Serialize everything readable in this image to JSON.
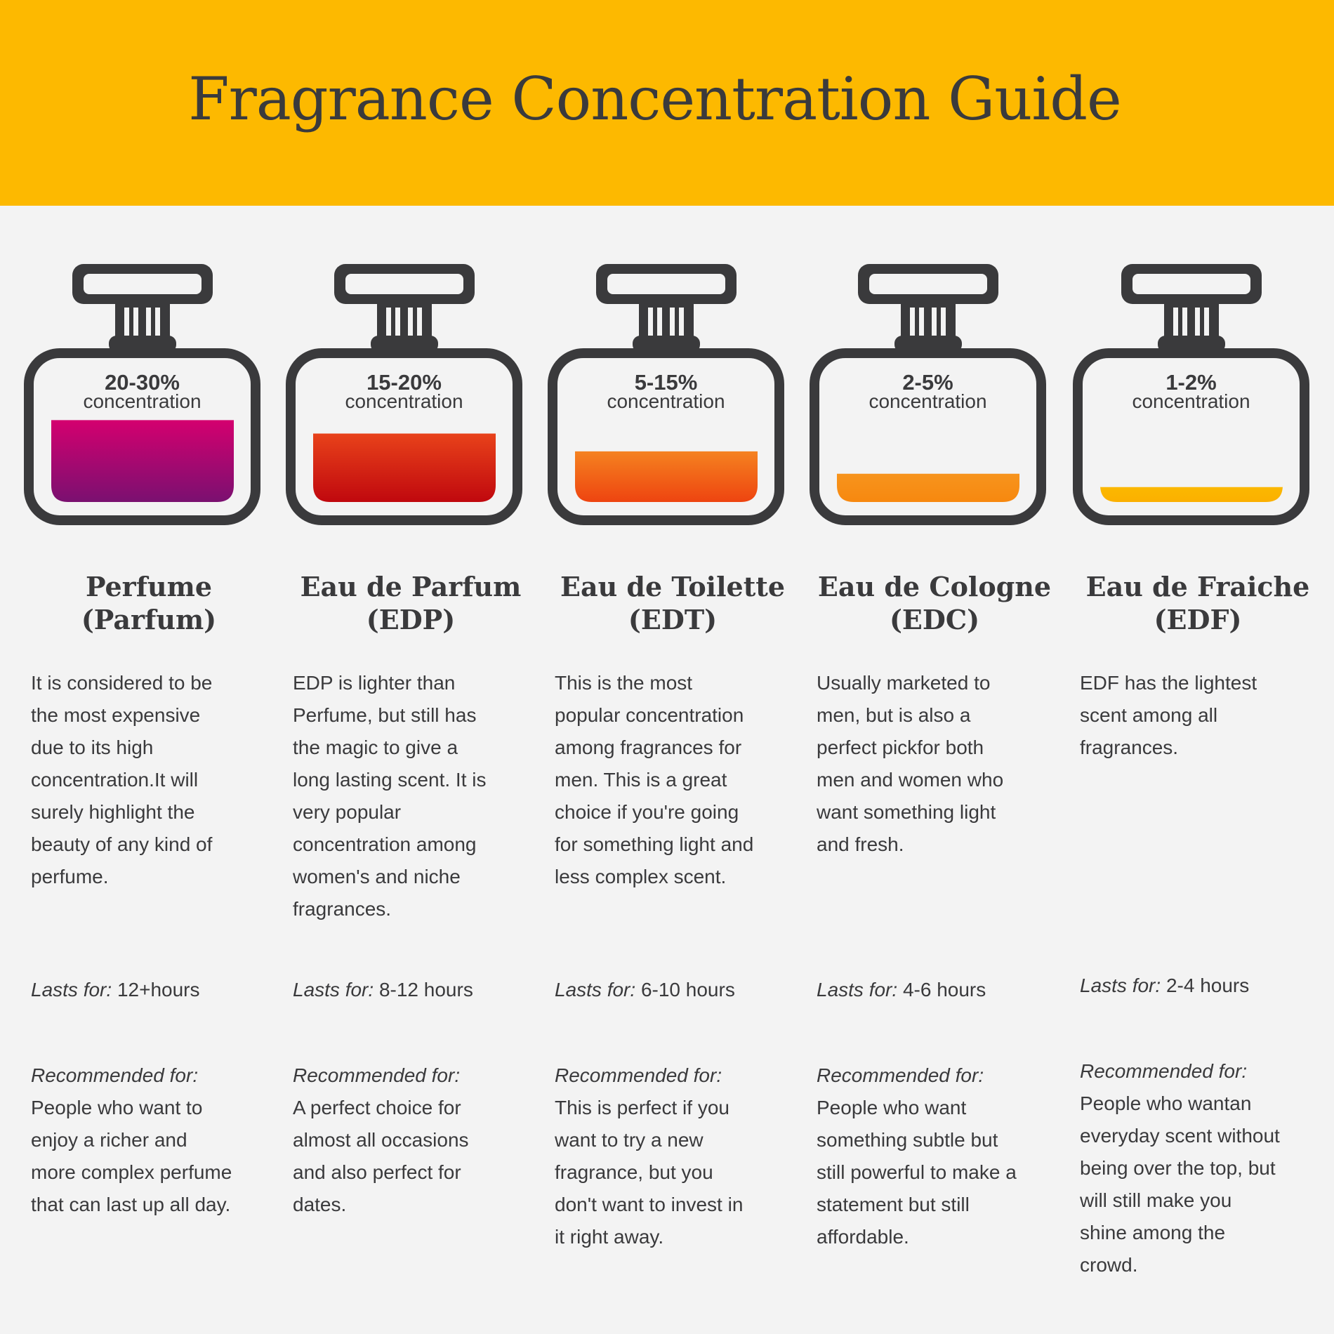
{
  "header": {
    "title": "Fragrance Concentration Guide",
    "background": "#fdb900"
  },
  "colors": {
    "bottle": "#3a3a3c",
    "text": "#3a3a3c",
    "page": "#f3f3f3"
  },
  "concentration_label": "concentration",
  "lasts_label": "Lasts for:",
  "recommended_label": "Recommended for:",
  "types": [
    {
      "percent": "20-30%",
      "name_line1": "Perfume",
      "name_line2": "(Parfum)",
      "fill_level": 0.55,
      "fill_colors": [
        "#d4006f",
        "#7a1070"
      ],
      "description": [
        "It is considered to be",
        "the most expensive",
        "due to its high",
        "concentration.It will",
        "surely highlight the",
        "beauty of any kind of",
        "perfume."
      ],
      "lasts": "12+hours",
      "recommended": [
        "People who want to",
        "enjoy a richer and",
        "more complex perfume",
        "that can last up all day."
      ]
    },
    {
      "percent": "15-20%",
      "name_line1": "Eau de Parfum",
      "name_line2": "(EDP)",
      "fill_level": 0.46,
      "fill_colors": [
        "#e8421a",
        "#c0080e"
      ],
      "description": [
        "EDP is lighter than",
        "Perfume, but still has",
        "the magic to give a",
        "long lasting scent. It is",
        "very popular",
        "concentration among",
        "women's and niche",
        "fragrances."
      ],
      "lasts": "8-12 hours",
      "recommended": [
        "A perfect choice for",
        "almost all occasions",
        "and also perfect for",
        "dates."
      ]
    },
    {
      "percent": "5-15%",
      "name_line1": "Eau de Toilette",
      "name_line2": "(EDT)",
      "fill_level": 0.34,
      "fill_colors": [
        "#f58220",
        "#ee4410"
      ],
      "description": [
        "This is the most",
        "popular concentration",
        "among fragrances for",
        "men. This is a great",
        "choice if you're going",
        "for something light and",
        "less complex scent."
      ],
      "lasts": "6-10 hours",
      "recommended": [
        "This is perfect if you",
        "want to try a new",
        "fragrance, but you",
        "don't want to invest in",
        "it right away."
      ]
    },
    {
      "percent": "2-5%",
      "name_line1": "Eau de Cologne",
      "name_line2": "(EDC)",
      "fill_level": 0.19,
      "fill_colors": [
        "#f7941d",
        "#f7880f"
      ],
      "description": [
        "Usually marketed to",
        "men, but is also a",
        "perfect pickfor both",
        "men and women who",
        "want something light",
        "and fresh."
      ],
      "lasts": "4-6 hours",
      "recommended": [
        "People who want",
        "something subtle but",
        "still powerful to make a",
        "statement but still",
        "affordable."
      ]
    },
    {
      "percent": "1-2%",
      "name_line1": "Eau de Fraiche",
      "name_line2": "(EDF)",
      "fill_level": 0.1,
      "fill_colors": [
        "#fbb900",
        "#fbb000"
      ],
      "description": [
        "EDF has the lightest",
        "scent among all",
        "fragrances."
      ],
      "lasts": "2-4 hours",
      "recommended": [
        "People who wantan",
        "everyday scent without",
        "being over the top, but",
        "will still make you",
        "shine among the",
        "crowd."
      ]
    }
  ]
}
